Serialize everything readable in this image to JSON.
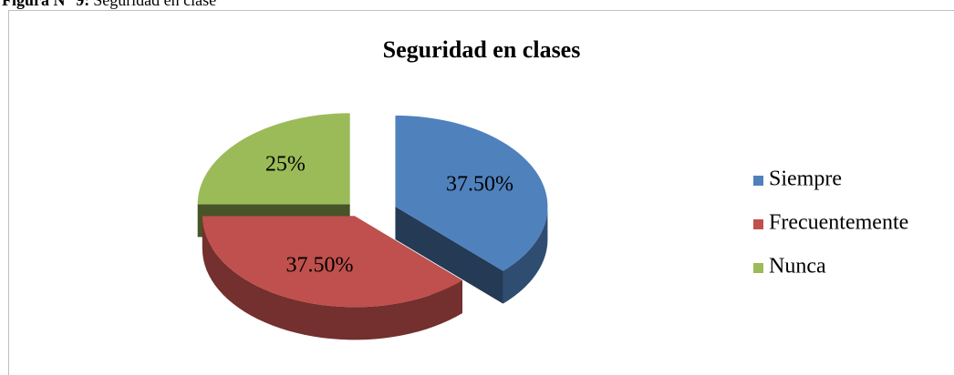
{
  "caption": {
    "label": "Figura N° 9:",
    "text": "Seguridad en clase"
  },
  "chart_data": {
    "type": "pie",
    "title": "Seguridad  en clases",
    "categories": [
      "Siempre",
      "Frecuentemente",
      "Nunca"
    ],
    "values": [
      37.5,
      37.5,
      25
    ],
    "value_labels": [
      "37.50%",
      "37.50%",
      "25%"
    ],
    "colors": [
      "#4f81bd",
      "#c0504d",
      "#9bbb59"
    ],
    "legend": "right"
  }
}
